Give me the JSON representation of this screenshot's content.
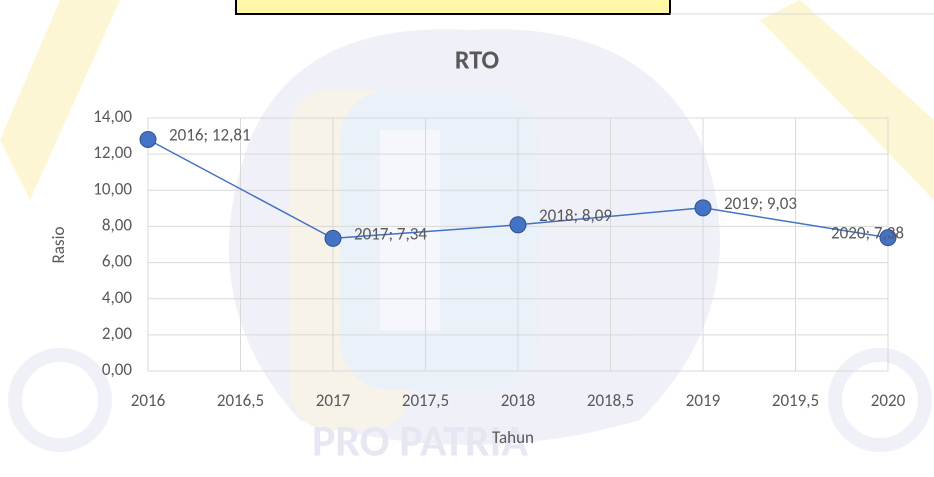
{
  "chart_data": {
    "type": "line",
    "title": "RTO",
    "x_label": "Tahun",
    "y_label": "Rasio",
    "watermark": "PRO PATRIA",
    "x": [
      2016,
      2017,
      2018,
      2019,
      2020
    ],
    "values": [
      12.81,
      7.34,
      8.09,
      9.03,
      7.38
    ],
    "value_labels": [
      "2016; 12,81",
      "2017; 7,34",
      "2018; 8,09",
      "2019; 9,03",
      "2020; 7,38"
    ],
    "color": "#4472c4",
    "xlim": [
      2016,
      2020
    ],
    "xticks": [
      2016,
      {
        "value": 2016.5,
        "label": "2016,5"
      },
      2017,
      {
        "value": 2017.5,
        "label": "2017,5"
      },
      2018,
      {
        "value": 2018.5,
        "label": "2018,5"
      },
      2019,
      {
        "value": 2019.5,
        "label": "2019,5"
      },
      2020
    ],
    "ylim": [
      0,
      14
    ],
    "yticks": [
      {
        "value": 0,
        "label": "0,00"
      },
      {
        "value": 2,
        "label": "2,00"
      },
      {
        "value": 4,
        "label": "4,00"
      },
      {
        "value": 6,
        "label": "6,00"
      },
      {
        "value": 8,
        "label": "8,00"
      },
      {
        "value": 10,
        "label": "10,00"
      },
      {
        "value": 12,
        "label": "12,00"
      },
      {
        "value": 14,
        "label": "14,00"
      }
    ],
    "grid": true
  }
}
